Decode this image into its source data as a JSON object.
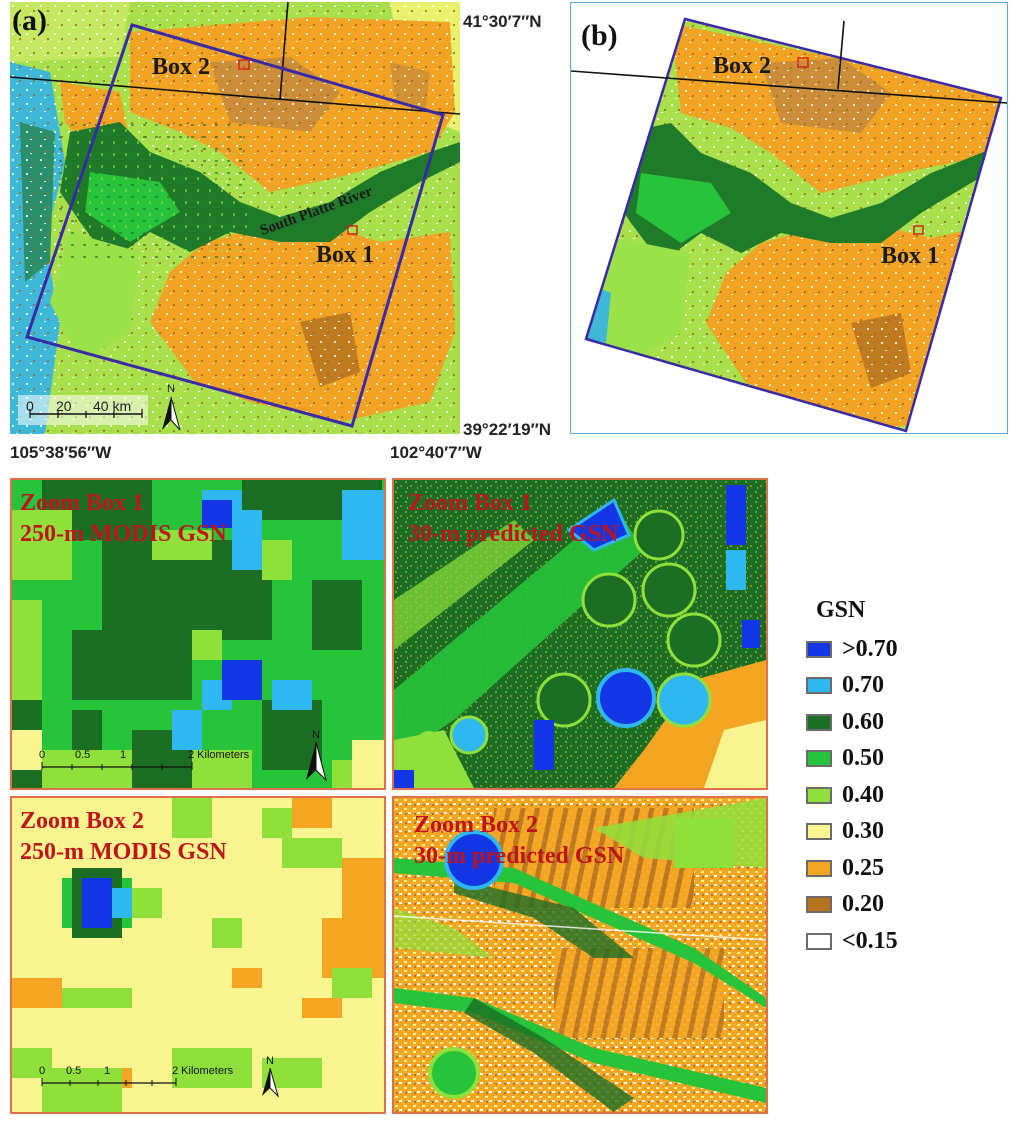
{
  "panel_a": {
    "label": "(a)",
    "box2_label": "Box 2",
    "box1_label": "Box 1",
    "river_label": "South Platte River",
    "coords": {
      "top_right": "41°30′7″N",
      "bottom_right": "39°22′19″N",
      "bottom_left": "105°38′56″W",
      "bottom_mid": "102°40′7″W"
    },
    "scale": {
      "ticks": [
        "0",
        "20",
        "40 km"
      ],
      "north": "N"
    }
  },
  "panel_b": {
    "label": "(b)",
    "box2_label": "Box 2",
    "box1_label": "Box 1"
  },
  "zooms": [
    {
      "line1": "Zoom Box 1",
      "line2": "250-m MODIS GSN",
      "scale_ticks": [
        "0",
        "0.5",
        "1",
        "2 Kilometers"
      ],
      "north": "N"
    },
    {
      "line1": "Zoom Box 1",
      "line2": "30-m predicted GSN"
    },
    {
      "line1": "Zoom Box 2",
      "line2": "250-m MODIS GSN",
      "scale_ticks": [
        "0",
        "0.5",
        "1",
        "2 Kilometers"
      ],
      "north": "N"
    },
    {
      "line1": "Zoom Box 2",
      "line2": "30-m predicted GSN"
    }
  ],
  "legend": {
    "title": "GSN",
    "items": [
      {
        "label": ">0.70",
        "color": "#1437e6"
      },
      {
        "label": "0.70",
        "color": "#2fb8f0"
      },
      {
        "label": "0.60",
        "color": "#1d6e25"
      },
      {
        "label": "0.50",
        "color": "#27c33a"
      },
      {
        "label": "0.40",
        "color": "#8fe03a"
      },
      {
        "label": "0.30",
        "color": "#f8f490"
      },
      {
        "label": "0.25",
        "color": "#f4a623"
      },
      {
        "label": "0.20",
        "color": "#b7731e"
      },
      {
        "label": "<0.15",
        "color": "#ffffff"
      }
    ]
  }
}
